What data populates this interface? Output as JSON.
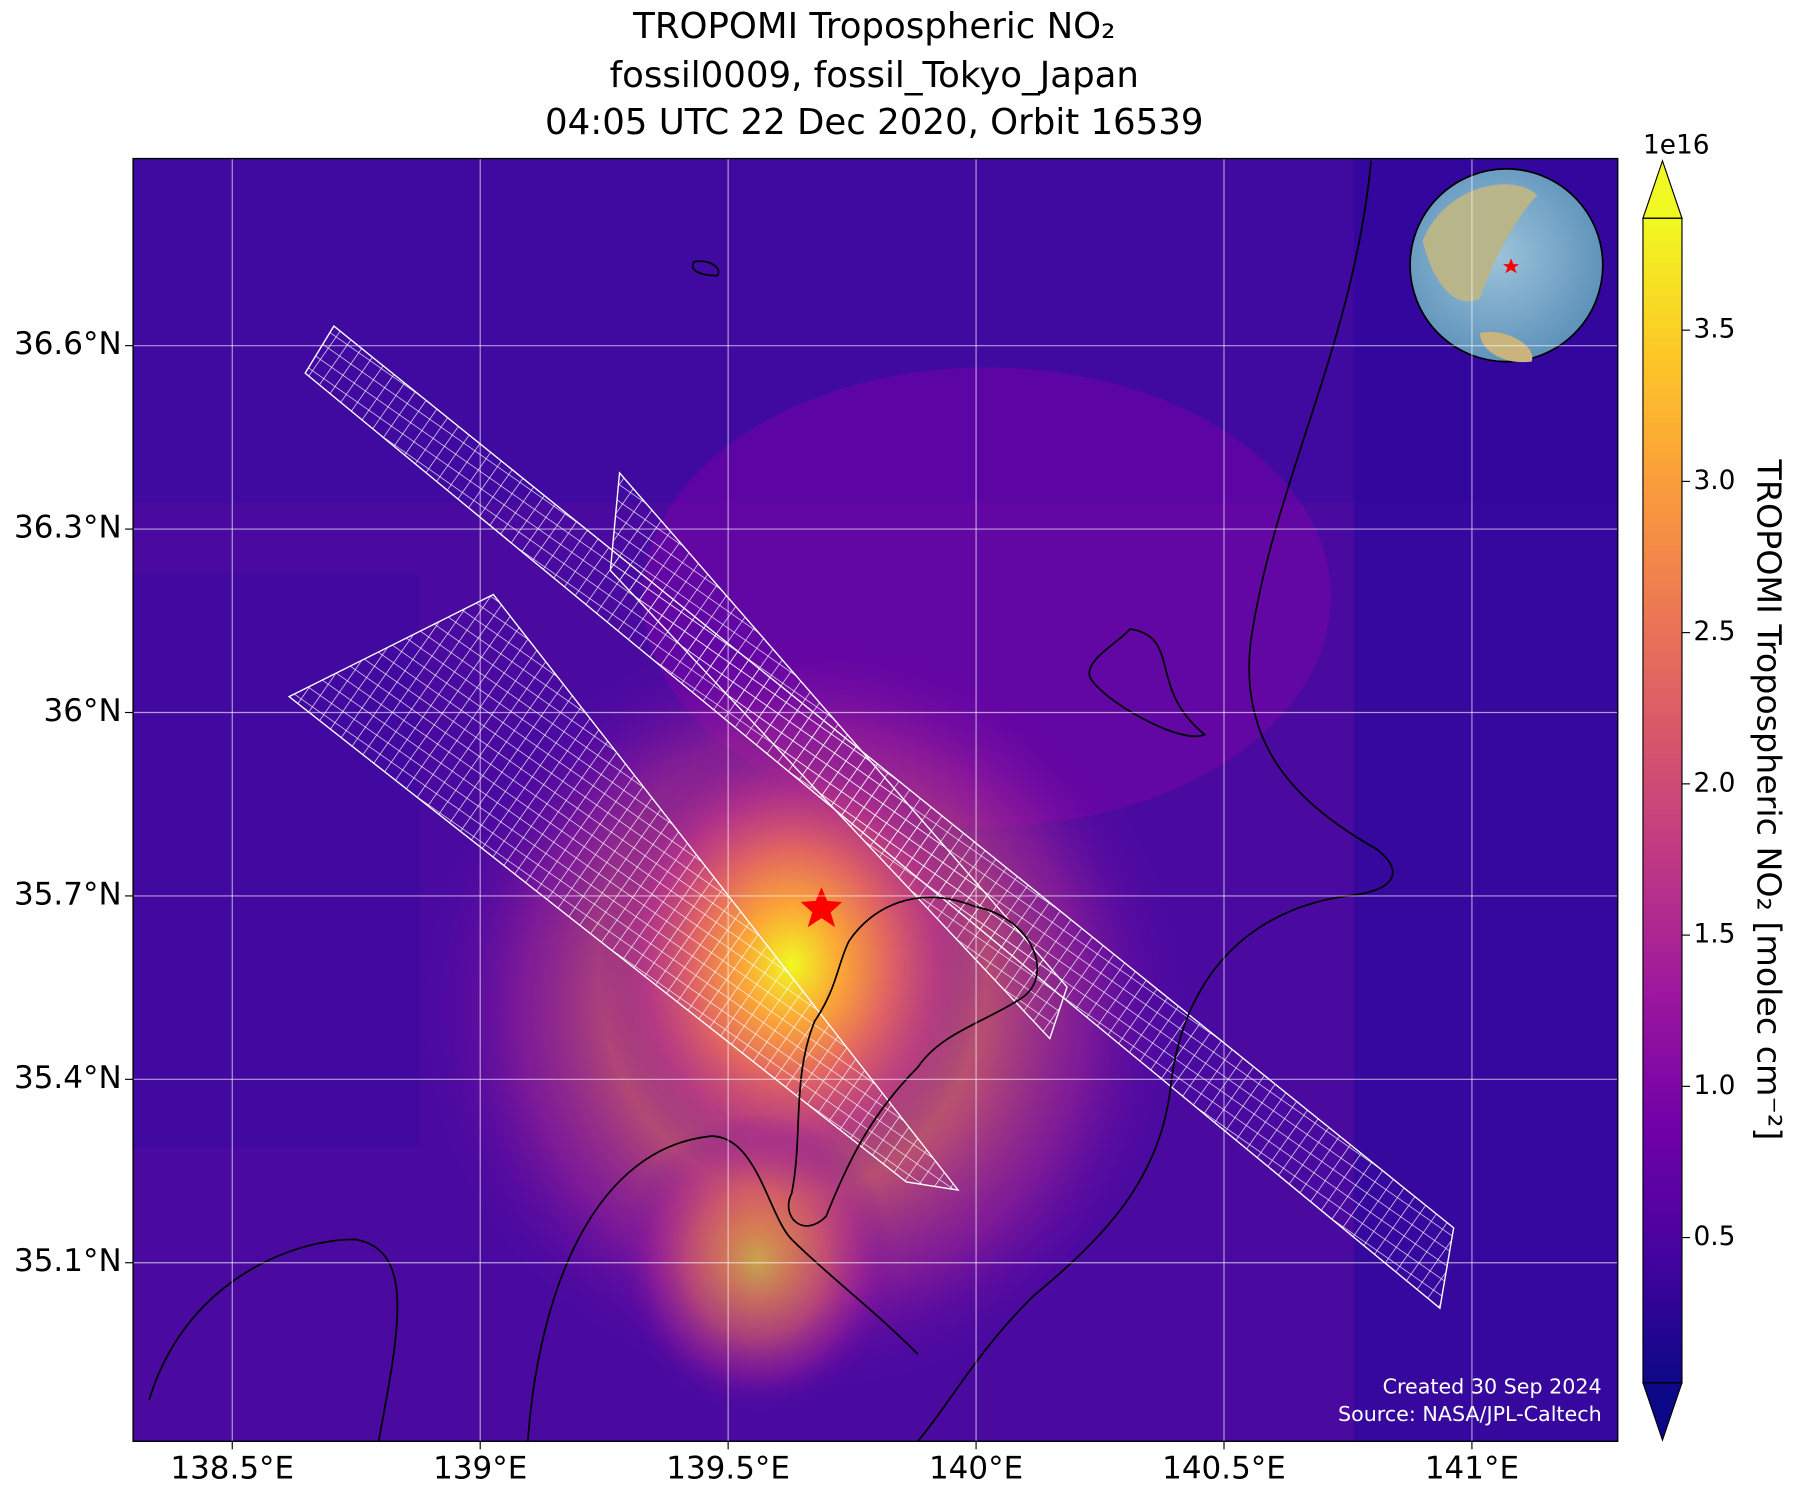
{
  "chart_data": {
    "type": "map",
    "title": [
      "TROPOMI Tropospheric NO₂",
      "fossil0009, fossil_Tokyo_Japan",
      "04:05 UTC 22 Dec 2020, Orbit 16539"
    ],
    "xlim": [
      138.3,
      141.294
    ],
    "ylim": [
      34.808,
      36.906
    ],
    "xticks": [
      {
        "value": 138.5,
        "label": "138.5°E"
      },
      {
        "value": 139,
        "label": "139°E"
      },
      {
        "value": 139.5,
        "label": "139.5°E"
      },
      {
        "value": 140,
        "label": "140°E"
      },
      {
        "value": 140.5,
        "label": "140.5°E"
      },
      {
        "value": 141,
        "label": "141°E"
      }
    ],
    "yticks": [
      {
        "value": 35.1,
        "label": "35.1°N"
      },
      {
        "value": 35.4,
        "label": "35.4°N"
      },
      {
        "value": 35.7,
        "label": "35.7°N"
      },
      {
        "value": 36,
        "label": "36°N"
      },
      {
        "value": 36.3,
        "label": "36.3°N"
      },
      {
        "value": 36.6,
        "label": "36.6°N"
      }
    ],
    "grid": true,
    "colormap": "plasma",
    "colorbar": {
      "label": "TROPOMI Tropospheric NO₂ [molec cm⁻²]",
      "scale_label": "1e16",
      "lim": [
        0.02,
        3.87
      ],
      "ticks": [
        0.5,
        {
          "value": 1,
          "label": "1.0"
        },
        1.5,
        {
          "value": 2,
          "label": "2.0"
        },
        2.5,
        {
          "value": 3,
          "label": "3.0"
        },
        3.5
      ]
    },
    "credits": [
      "Created 30 Sep 2024",
      "Source: NASA/JPL-Caltech"
    ]
  }
}
